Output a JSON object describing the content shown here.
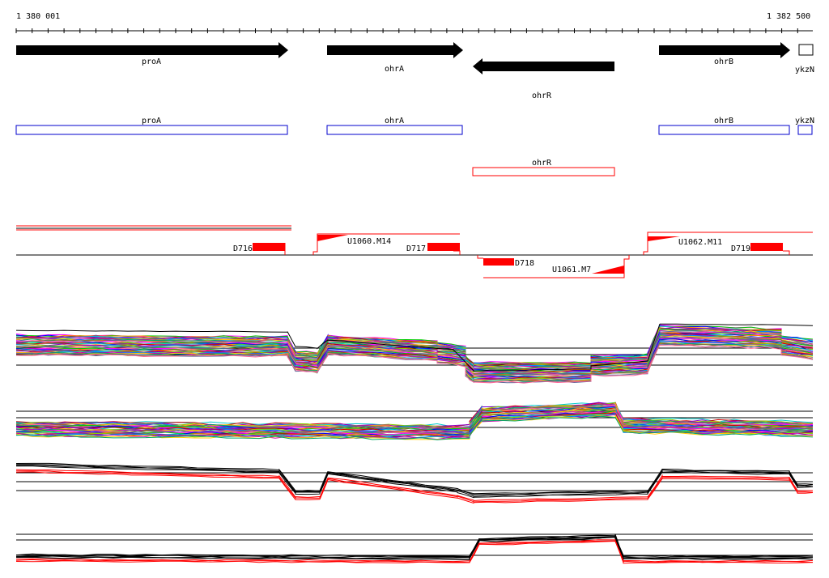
{
  "ruler": {
    "start_label": "1 380 001",
    "end_label": "1 382 500"
  },
  "genes": [
    {
      "name": "proA",
      "strand": "+"
    },
    {
      "name": "ohrA",
      "strand": "+"
    },
    {
      "name": "ohrR",
      "strand": "-"
    },
    {
      "name": "ohrB",
      "strand": "+"
    },
    {
      "name": "ykzN",
      "strand": "+"
    }
  ],
  "cds_boxes": [
    {
      "name": "proA"
    },
    {
      "name": "ohrA"
    },
    {
      "name": "ohrB"
    },
    {
      "name": "ykzN"
    }
  ],
  "reverse_box": {
    "name": "ohrR"
  },
  "features": {
    "d716": "D716",
    "u1060": "U1060.M14",
    "d717": "D717",
    "d718": "D718",
    "u1061": "U1061.M7",
    "u1062": "U1062.M11",
    "d719": "D719"
  },
  "palette": {
    "black": "#000000",
    "red": "#ff0000",
    "blue": "#0000cc",
    "expression_colors": [
      "#ff00ff",
      "#00cc00",
      "#0000ff",
      "#ff8800",
      "#00cccc",
      "#cc0000",
      "#8800cc",
      "#88cc00",
      "#0088ff",
      "#cc00aa",
      "#ffcc00",
      "#00aa66",
      "#996633",
      "#666699",
      "#ff6699"
    ]
  }
}
